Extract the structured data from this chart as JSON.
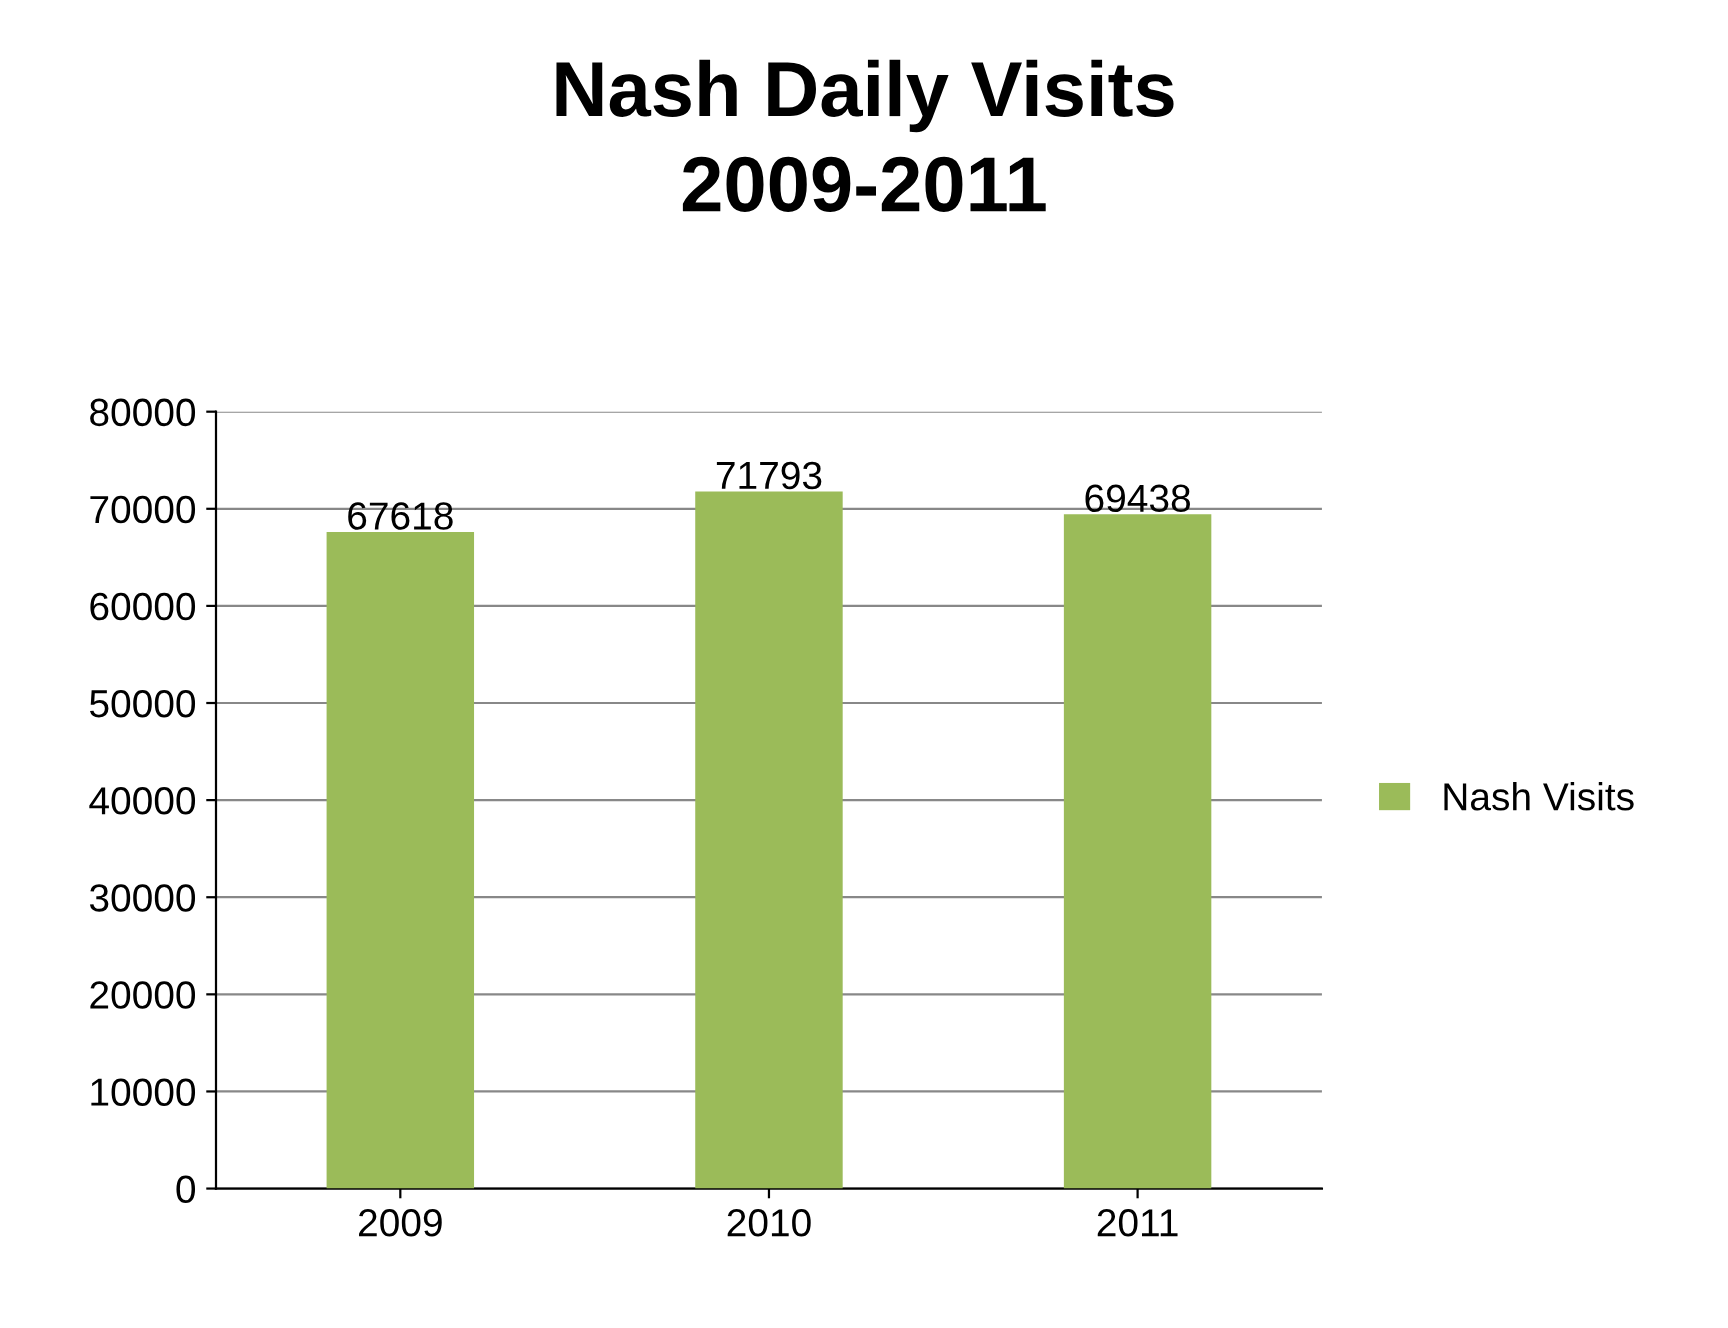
{
  "chart_data": {
    "type": "bar",
    "title": "Nash Daily Visits\n2009-2011",
    "categories": [
      "2009",
      "2010",
      "2011"
    ],
    "series": [
      {
        "name": "Nash Visits",
        "color": "#9bbb59",
        "values": [
          67618,
          71793,
          69438
        ]
      }
    ],
    "ylim": [
      0,
      80000
    ],
    "yticks": [
      0,
      10000,
      20000,
      30000,
      40000,
      50000,
      60000,
      70000,
      80000
    ],
    "grid": "y",
    "legend": "right",
    "data_labels": true
  }
}
